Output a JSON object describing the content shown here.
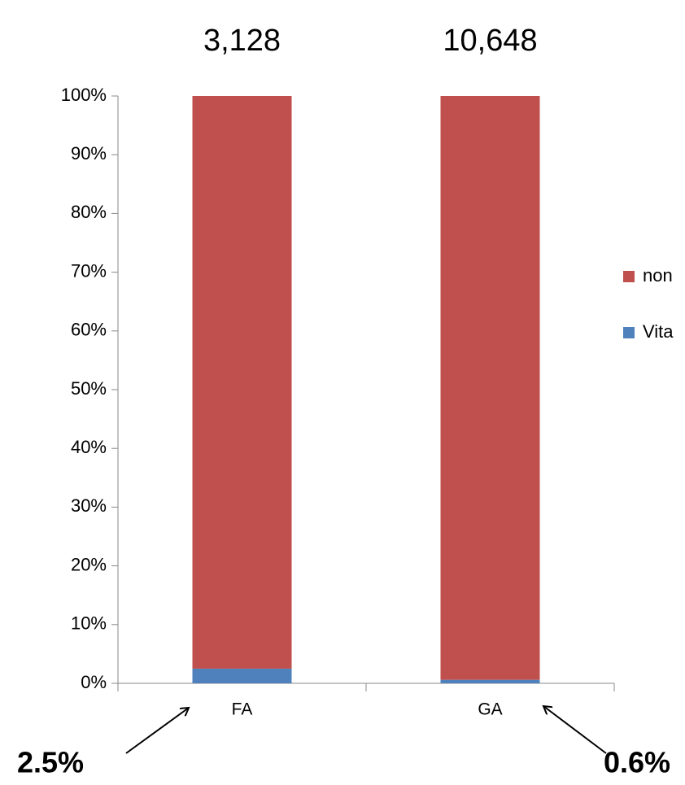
{
  "chart_data": {
    "type": "stacked_bar_percent",
    "categories": [
      "FA",
      "GA"
    ],
    "totals": [
      "3,128",
      "10,648"
    ],
    "series": [
      {
        "name": "Vita",
        "color": "#4f81bd",
        "values": [
          2.5,
          0.6
        ],
        "value_labels": [
          "2.5%",
          "0.6%"
        ]
      },
      {
        "name": "non",
        "color": "#c0504d",
        "values": [
          97.5,
          99.4
        ]
      }
    ],
    "ylim": [
      0,
      100
    ],
    "yticks": [
      {
        "value": 0,
        "label": "0%"
      },
      {
        "value": 10,
        "label": "10%"
      },
      {
        "value": 20,
        "label": "20%"
      },
      {
        "value": 30,
        "label": "30%"
      },
      {
        "value": 40,
        "label": "40%"
      },
      {
        "value": 50,
        "label": "50%"
      },
      {
        "value": 60,
        "label": "60%"
      },
      {
        "value": 70,
        "label": "70%"
      },
      {
        "value": 80,
        "label": "80%"
      },
      {
        "value": 90,
        "label": "90%"
      },
      {
        "value": 100,
        "label": "100%"
      }
    ],
    "legend": "right"
  }
}
